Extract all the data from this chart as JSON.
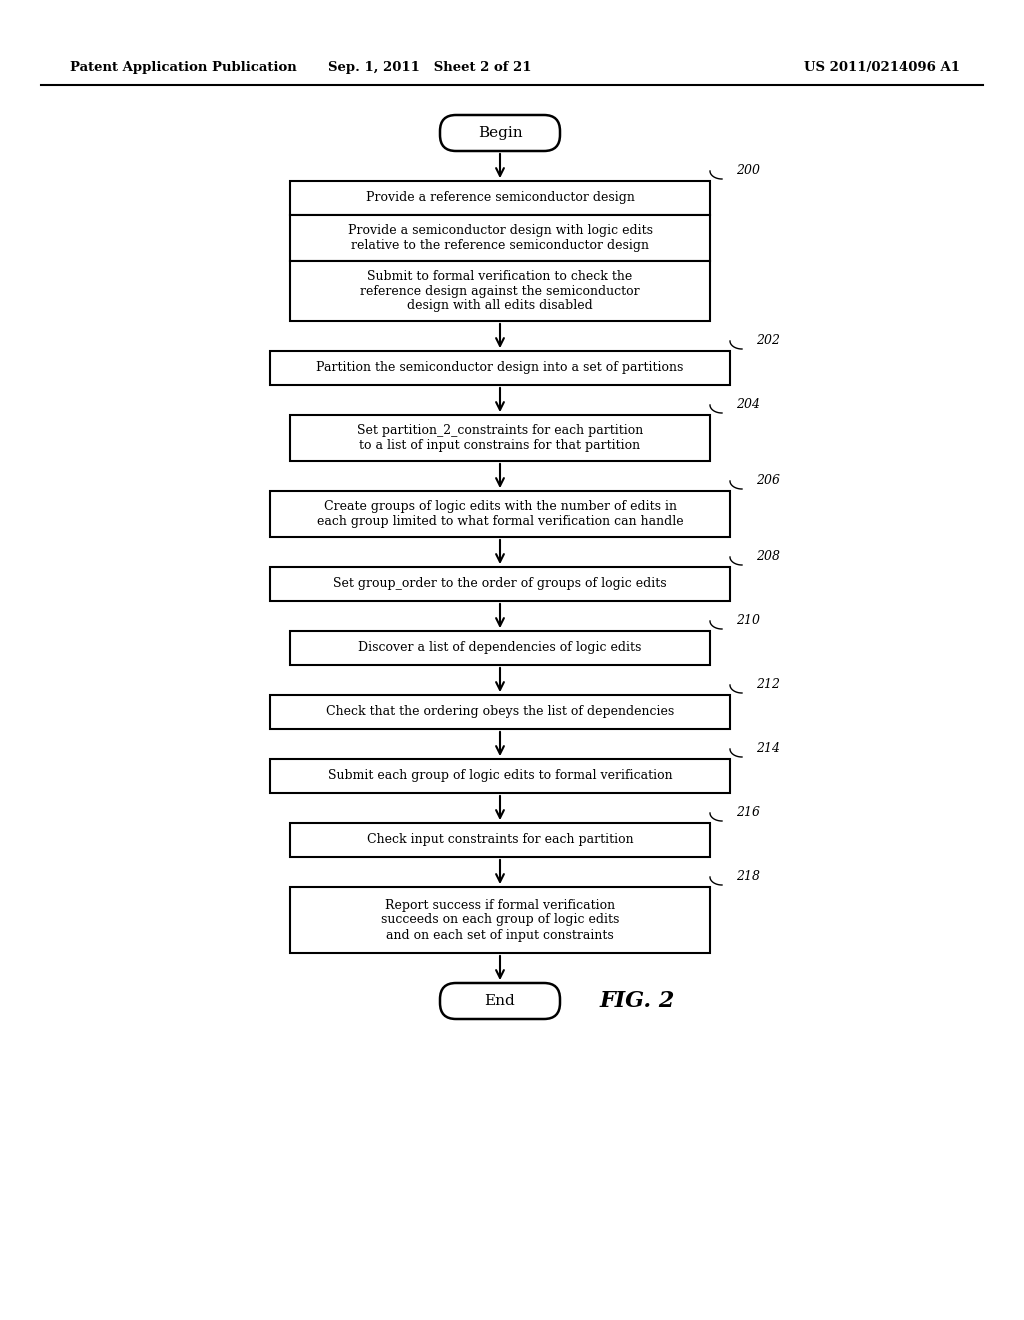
{
  "header_left": "Patent Application Publication",
  "header_mid": "Sep. 1, 2011   Sheet 2 of 21",
  "header_right": "US 2011/0214096 A1",
  "fig_label": "FIG. 2",
  "begin_label": "Begin",
  "end_label": "End",
  "sub1_text": "Provide a reference semiconductor design",
  "sub2_text": "Provide a semiconductor design with logic edits\nrelative to the reference semiconductor design",
  "sub3_text": "Submit to formal verification to check the\nreference design against the semiconductor\ndesign with all edits disabled",
  "b202_text": "Partition the semiconductor design into a set of partitions",
  "b204_text": "Set partition_2_constraints for each partition\nto a list of input constrains for that partition",
  "b206_text": "Create groups of logic edits with the number of edits in\neach group limited to what formal verification can handle",
  "b208_text": "Set group_order to the order of groups of logic edits",
  "b210_text": "Discover a list of dependencies of logic edits",
  "b212_text": "Check that the ordering obeys the list of dependencies",
  "b214_text": "Submit each group of logic edits to formal verification",
  "b216_text": "Check input constraints for each partition",
  "b218_text": "Report success if formal verification\nsucceeds on each group of logic edits\nand on each set of input constraints",
  "background_color": "#ffffff",
  "text_color": "#000000"
}
